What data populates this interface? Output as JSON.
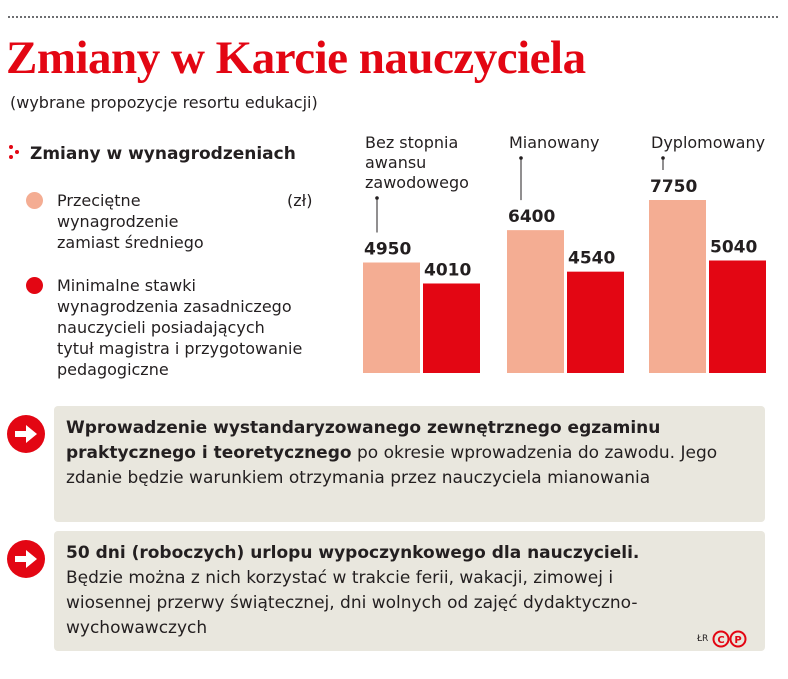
{
  "header": {
    "title": "Zmiany w Karcie nauczyciela",
    "subtitle": "(wybrane propozycje resortu edukacji)"
  },
  "section": {
    "title": "Zmiany w wynagrodzeniach",
    "unit": "(zł)"
  },
  "legend": [
    {
      "label": "Przeciętne\nwynagrodzenie\nzamiast średniego",
      "color": "#f4ad93"
    },
    {
      "label": "Minimalne stawki\nwynagrodzenia zasadniczego\nnauczycieli posiadających\ntytuł magistra i przygotowanie\npedagogiczne",
      "color": "#e30613"
    }
  ],
  "chart_data": {
    "type": "bar",
    "categories": [
      "Bez stopnia awansu zawodowego",
      "Mianowany",
      "Dyplomowany"
    ],
    "category_lines": [
      [
        "Bez stopnia",
        "awansu",
        "zawodowego"
      ],
      [
        "Mianowany"
      ],
      [
        "Dyplomowany"
      ]
    ],
    "series": [
      {
        "name": "Przeciętne wynagrodzenie zamiast średniego",
        "values": [
          4950,
          6400,
          7750
        ],
        "color": "#f4ad93"
      },
      {
        "name": "Minimalne stawki wynagrodzenia zasadniczego nauczycieli posiadających tytuł magistra i przygotowanie pedagogiczne",
        "values": [
          4010,
          4540,
          5040
        ],
        "color": "#e30613"
      }
    ],
    "value_labels": [
      [
        "4950",
        "4010"
      ],
      [
        "6400",
        "4540"
      ],
      [
        "7750",
        "5040"
      ]
    ],
    "unit": "zł",
    "ylim": [
      0,
      8000
    ],
    "grid": false
  },
  "boxes": [
    {
      "bold": "Wprowadzenie wystandaryzowanego zewnętrznego egzaminu praktycznego i teoretycznego",
      "text": " po okresie wprowadzenia do zawodu. Jego zdanie będzie warunkiem otrzymania przez nauczyciela mianowania"
    },
    {
      "bold": "50 dni (roboczych) urlopu wypoczynkowego dla nauczycieli.",
      "text": " Będzie można z nich korzystać w trakcie ferii, wakacji, zimowej i wiosennej przerwy świątecznej, dni wolnych od zajęć dydaktyczno-wychowawczych"
    }
  ],
  "colors": {
    "accent": "#e30613",
    "light": "#f4ad93",
    "box_bg": "#e9e7de"
  },
  "credit": {
    "author": "ŁR",
    "logo_text": "CP"
  },
  "icons": {
    "bullet": "dots-icon",
    "box_marker": "arrow-right-icon"
  }
}
